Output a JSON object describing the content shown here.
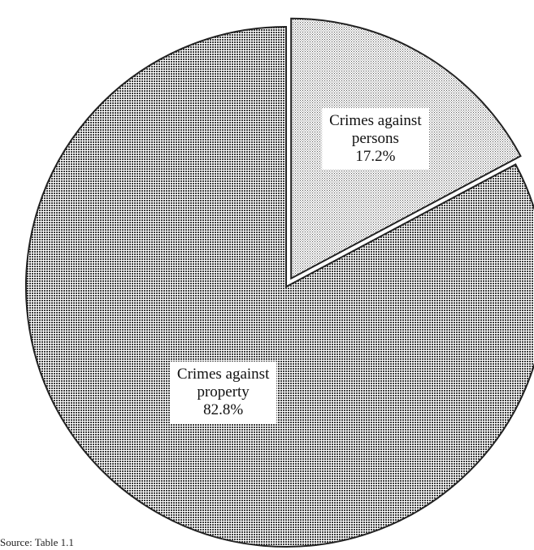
{
  "chart_data": {
    "type": "pie",
    "title": "",
    "slices": [
      {
        "label_lines": [
          "Crimes against",
          "persons"
        ],
        "value": 17.2,
        "value_label": "17.2%",
        "exploded": true
      },
      {
        "label_lines": [
          "Crimes against",
          "property"
        ],
        "value": 82.8,
        "value_label": "82.8%",
        "exploded": false
      }
    ],
    "start_angle_deg": 0,
    "direction": "clockwise",
    "legend": "none",
    "colors": {
      "dark_pattern": "#4a4a4a",
      "light_pattern": "#bdbdbd",
      "background": "#ffffff"
    }
  },
  "source": "Source: Table 1.1"
}
